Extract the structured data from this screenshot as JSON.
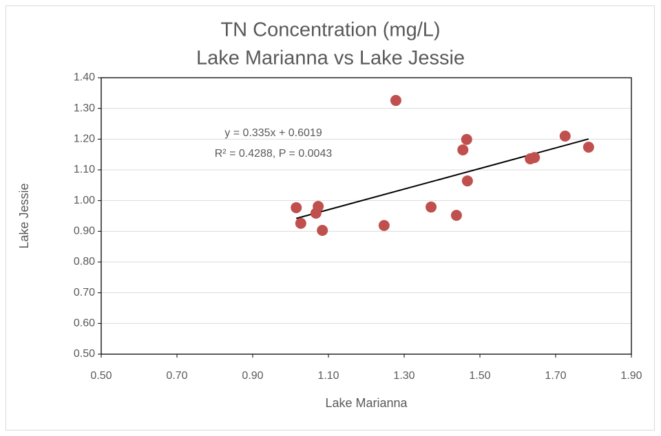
{
  "chart_data": {
    "type": "scatter",
    "title": "TN Concentration (mg/L)",
    "subtitle": "Lake Marianna vs Lake Jessie",
    "x_label": "Lake Marianna",
    "y_label": "Lake Jessie",
    "annotations": [
      "y = 0.335x + 0.6019",
      "R² = 0.4288, P = 0.0043"
    ],
    "x": [
      1.015,
      1.027,
      1.073,
      1.067,
      1.084,
      1.247,
      1.278,
      1.371,
      1.438,
      1.455,
      1.465,
      1.467,
      1.633,
      1.644,
      1.725,
      1.787
    ],
    "values": [
      0.977,
      0.926,
      0.981,
      0.959,
      0.903,
      0.919,
      1.326,
      0.979,
      0.952,
      1.165,
      1.199,
      1.064,
      1.136,
      1.14,
      1.21,
      1.174
    ],
    "color": "#c0504d",
    "trendline": {
      "slope": 0.335,
      "intercept": 0.6019,
      "color": "#000000"
    },
    "xlim": [
      0.5,
      1.9
    ],
    "ylim": [
      0.5,
      1.4
    ],
    "xticks": [
      {
        "value": 0.5,
        "label": "0.50"
      },
      {
        "value": 0.7,
        "label": "0.70"
      },
      {
        "value": 0.9,
        "label": "0.90"
      },
      {
        "value": 1.1,
        "label": "1.10"
      },
      {
        "value": 1.3,
        "label": "1.30"
      },
      {
        "value": 1.5,
        "label": "1.50"
      },
      {
        "value": 1.7,
        "label": "1.70"
      },
      {
        "value": 1.9,
        "label": "1.90"
      }
    ],
    "yticks": [
      {
        "value": 0.5,
        "label": "0.50"
      },
      {
        "value": 0.6,
        "label": "0.60"
      },
      {
        "value": 0.7,
        "label": "0.70"
      },
      {
        "value": 0.8,
        "label": "0.80"
      },
      {
        "value": 0.9,
        "label": "0.90"
      },
      {
        "value": 1.0,
        "label": "1.00"
      },
      {
        "value": 1.1,
        "label": "1.10"
      },
      {
        "value": 1.2,
        "label": "1.20"
      },
      {
        "value": 1.3,
        "label": "1.30"
      },
      {
        "value": 1.4,
        "label": "1.40"
      }
    ],
    "grid": true
  }
}
